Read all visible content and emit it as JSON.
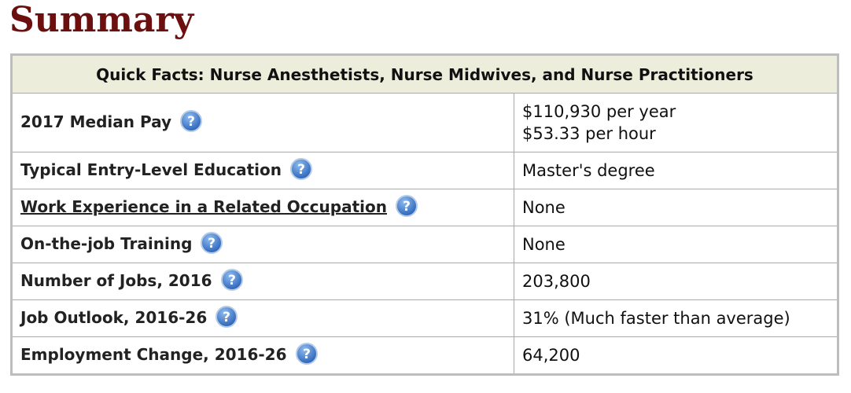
{
  "page": {
    "title": "Summary"
  },
  "table": {
    "caption": "Quick Facts: Nurse Anesthetists, Nurse Midwives, and Nurse Practitioners",
    "rows": [
      {
        "label": "2017 Median Pay",
        "value_line1": "$110,930 per year",
        "value_line2": "$53.33 per hour"
      },
      {
        "label": "Typical Entry-Level Education",
        "value": "Master's degree"
      },
      {
        "label": "Work Experience in a Related Occupation",
        "value": "None"
      },
      {
        "label": "On-the-job Training",
        "value": "None"
      },
      {
        "label": "Number of Jobs, 2016",
        "value": "203,800"
      },
      {
        "label": "Job Outlook, 2016-26",
        "value": "31% (Much faster than average)"
      },
      {
        "label": "Employment Change, 2016-26",
        "value": "64,200"
      }
    ]
  },
  "icons": {
    "help": "question-mark-icon"
  },
  "colors": {
    "title": "#6b0f0f",
    "header_bg": "#ededdc",
    "help_icon": "#2e6fc4"
  }
}
